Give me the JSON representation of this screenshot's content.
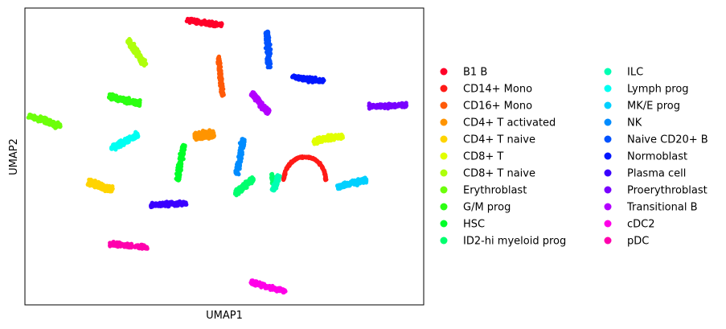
{
  "chart_data": {
    "type": "scatter",
    "title": "",
    "xlabel": "UMAP1",
    "ylabel": "UMAP2",
    "xlim": [
      0,
      100
    ],
    "ylim": [
      0,
      100
    ],
    "ticks": "none",
    "grid": false,
    "legend_position": "right",
    "legend_columns": 2,
    "series": [
      {
        "name": "B1 B",
        "color": "#ff0029",
        "center": [
          45,
          95
        ],
        "angle": -8,
        "length": 9,
        "width": 1.5
      },
      {
        "name": "CD14+ Mono",
        "color": "#ff1a17",
        "arc": true,
        "center": [
          71,
          47
        ],
        "radius": 7.5
      },
      {
        "name": "CD16+ Mono",
        "color": "#ff5a08",
        "center": [
          49,
          77
        ],
        "angle": -84,
        "length": 10,
        "width": 1.2
      },
      {
        "name": "CD4+ T activated",
        "color": "#ff9400",
        "center": [
          45,
          57
        ],
        "angle": 10,
        "length": 5,
        "width": 3
      },
      {
        "name": "CD4+ T naive",
        "color": "#ffd400",
        "center": [
          19,
          40
        ],
        "angle": -18,
        "length": 6.5,
        "width": 2.5
      },
      {
        "name": "CD8+ T",
        "color": "#e1ff00",
        "center": [
          76,
          56
        ],
        "angle": 10,
        "length": 7.5,
        "width": 2
      },
      {
        "name": "CD8+ T naive",
        "color": "#aeff0c",
        "center": [
          28,
          85
        ],
        "angle": -55,
        "length": 7.5,
        "width": 2.4
      },
      {
        "name": "Erythroblast",
        "color": "#6cff0a",
        "center": [
          5,
          62
        ],
        "angle": -18,
        "length": 8.5,
        "width": 2
      },
      {
        "name": "G/M prog",
        "color": "#2cff12",
        "center": [
          25,
          69
        ],
        "angle": -14,
        "length": 8,
        "width": 2
      },
      {
        "name": "HSC",
        "color": "#00ff29",
        "center": [
          39,
          48
        ],
        "angle": 80,
        "length": 9,
        "width": 1.8
      },
      {
        "name": "ID2-hi myeloid prog",
        "color": "#00ff6e",
        "center": [
          55,
          40
        ],
        "angle": 40,
        "length": 6,
        "width": 2,
        "extra": [
          [
            62,
            42.5,
            0.5,
            3.5
          ]
        ]
      },
      {
        "name": "ILC",
        "color": "#00ffb3",
        "center": [
          63,
          41
        ],
        "angle": 70,
        "length": 4,
        "width": 1.5
      },
      {
        "name": "Lymph prog",
        "color": "#00fff2",
        "center": [
          25,
          55
        ],
        "angle": 28,
        "length": 7.5,
        "width": 2
      },
      {
        "name": "MK/E prog",
        "color": "#00d0ff",
        "center": [
          82,
          41
        ],
        "angle": 15,
        "length": 7.5,
        "width": 2
      },
      {
        "name": "NK",
        "color": "#008cff",
        "center": [
          54,
          50
        ],
        "angle": 80,
        "length": 9,
        "width": 2
      },
      {
        "name": "Naive CD20+ B",
        "color": "#0052ff",
        "center": [
          61,
          86
        ],
        "angle": -86,
        "length": 9,
        "width": 2
      },
      {
        "name": "Normoblast",
        "color": "#0016ff",
        "center": [
          71,
          76
        ],
        "angle": -8,
        "length": 8,
        "width": 1.6
      },
      {
        "name": "Plasma cell",
        "color": "#3a00ff",
        "center": [
          36,
          34
        ],
        "angle": 4,
        "length": 9,
        "width": 1.5
      },
      {
        "name": "Proerythroblast",
        "color": "#7800ff",
        "center": [
          91,
          67
        ],
        "angle": 2,
        "length": 9.5,
        "width": 1.5
      },
      {
        "name": "Transitional B",
        "color": "#b300ff",
        "center": [
          59,
          68
        ],
        "angle": -50,
        "length": 6.5,
        "width": 1.8
      },
      {
        "name": "cDC2",
        "color": "#ff00e8",
        "center": [
          61,
          6
        ],
        "angle": -15,
        "length": 9,
        "width": 1.6
      },
      {
        "name": "pDC",
        "color": "#ff00ad",
        "center": [
          26,
          20
        ],
        "angle": -6,
        "length": 9.5,
        "width": 1.5
      }
    ]
  }
}
